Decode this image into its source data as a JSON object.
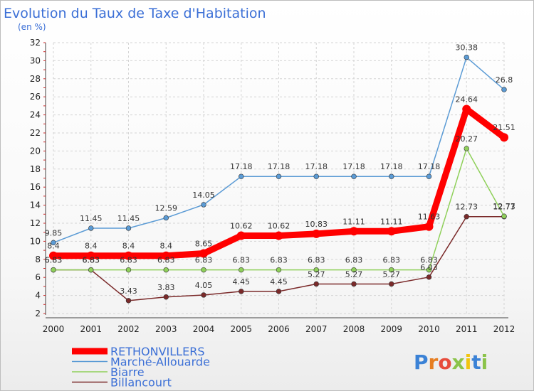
{
  "chart_data": {
    "type": "line",
    "title": "Evolution du Taux de Taxe d'Habitation",
    "subtitle": "(en %)",
    "x": [
      2000,
      2001,
      2002,
      2003,
      2004,
      2005,
      2006,
      2007,
      2008,
      2009,
      2010,
      2011,
      2012
    ],
    "ylim": [
      2,
      32
    ],
    "yticks": [
      2,
      4,
      6,
      8,
      10,
      12,
      14,
      16,
      18,
      20,
      22,
      24,
      26,
      28,
      30,
      32
    ],
    "grid": true,
    "legend_position": "bottom-left",
    "series": [
      {
        "name": "RETHONVILLERS",
        "values": [
          8.4,
          8.4,
          8.4,
          8.4,
          8.65,
          10.62,
          10.62,
          10.83,
          11.11,
          11.11,
          11.63,
          24.64,
          21.51
        ],
        "labels": [
          "8.4",
          "8.4",
          "8.4",
          "8.4",
          "8.65",
          "10.62",
          "10.62",
          "10.83",
          "11.11",
          "11.11",
          "11.63",
          "24.64",
          "21.51"
        ],
        "color": "#ff0000"
      },
      {
        "name": "Marché-Allouarde",
        "values": [
          9.85,
          11.45,
          11.45,
          12.59,
          14.05,
          17.18,
          17.18,
          17.18,
          17.18,
          17.18,
          17.18,
          30.38,
          26.8
        ],
        "labels": [
          "9.85",
          "11.45",
          "11.45",
          "12.59",
          "14.05",
          "17.18",
          "17.18",
          "17.18",
          "17.18",
          "17.18",
          "17.18",
          "30.38",
          "26.8"
        ],
        "color": "#5b9bd5"
      },
      {
        "name": "Biarre",
        "values": [
          6.83,
          6.83,
          6.83,
          6.83,
          6.83,
          6.83,
          6.83,
          6.83,
          6.83,
          6.83,
          6.83,
          20.27,
          12.77
        ],
        "labels": [
          "6.83",
          "6.83",
          "6.83",
          "6.83",
          "6.83",
          "6.83",
          "6.83",
          "6.83",
          "6.83",
          "6.83",
          "6.83",
          "20.27",
          "12.77"
        ],
        "color": "#8fd05a"
      },
      {
        "name": "Billancourt",
        "values": [
          6.83,
          6.83,
          3.43,
          3.83,
          4.05,
          4.45,
          4.45,
          5.27,
          5.27,
          5.27,
          6.03,
          12.73,
          12.73
        ],
        "labels": [
          "6.83",
          "6.83",
          "3.43",
          "3.83",
          "4.05",
          "4.45",
          "4.45",
          "5.27",
          "5.27",
          "5.27",
          "6.03",
          "12.73",
          "12.73"
        ],
        "color": "#7b2a2a"
      }
    ]
  },
  "logo": {
    "text": "Proxiti"
  }
}
